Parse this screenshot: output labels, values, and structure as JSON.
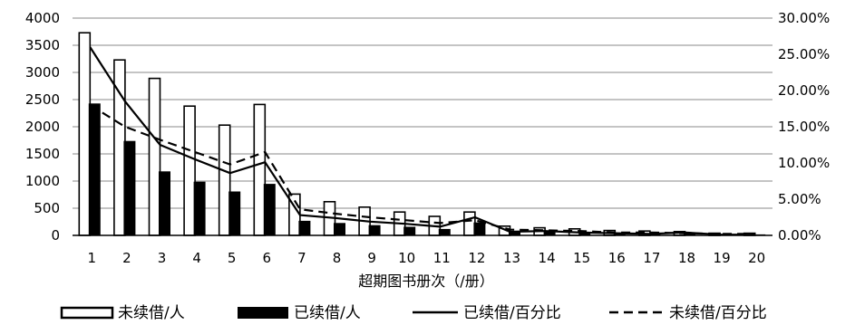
{
  "chart_data": {
    "type": "bar",
    "title": "",
    "xlabel": "超期图书册次（/册）",
    "ylabel": "",
    "categories": [
      "1",
      "2",
      "3",
      "4",
      "5",
      "6",
      "7",
      "8",
      "9",
      "10",
      "11",
      "12",
      "13",
      "14",
      "15",
      "16",
      "17",
      "18",
      "19",
      "20"
    ],
    "ylim": [
      0,
      4000
    ],
    "y_ticks": [
      "0",
      "500",
      "1000",
      "1500",
      "2000",
      "2500",
      "3000",
      "3500",
      "4000"
    ],
    "y2lim": [
      0,
      30
    ],
    "y2_ticks": [
      "0.00%",
      "5.00%",
      "10.00%",
      "15.00%",
      "20.00%",
      "25.00%",
      "30.00%"
    ],
    "grid": true,
    "legend_position": "bottom",
    "series": [
      {
        "name": "未续借/人",
        "kind": "bar",
        "style": "hollow",
        "values": [
          3730,
          3230,
          2890,
          2380,
          2030,
          2410,
          760,
          620,
          520,
          430,
          350,
          430,
          170,
          140,
          120,
          90,
          80,
          70,
          40,
          40
        ]
      },
      {
        "name": "已续借/人",
        "kind": "bar",
        "style": "solid",
        "values": [
          2420,
          1730,
          1170,
          980,
          800,
          940,
          260,
          220,
          180,
          150,
          110,
          230,
          50,
          60,
          40,
          30,
          20,
          40,
          10,
          10
        ]
      },
      {
        "name": "已续借/百分比",
        "kind": "line",
        "style": "solid",
        "axis": "right",
        "values": [
          26.0,
          18.5,
          12.5,
          10.5,
          8.6,
          10.1,
          2.8,
          2.4,
          1.9,
          1.6,
          1.2,
          2.5,
          0.5,
          0.6,
          0.4,
          0.3,
          0.2,
          0.4,
          0.1,
          0.1
        ]
      },
      {
        "name": "未续借/百分比",
        "kind": "line",
        "style": "dashed",
        "axis": "right",
        "values": [
          18.0,
          15.0,
          13.2,
          11.5,
          9.8,
          11.5,
          3.6,
          3.0,
          2.5,
          2.1,
          1.7,
          2.1,
          0.8,
          0.7,
          0.6,
          0.4,
          0.4,
          0.3,
          0.2,
          0.2
        ]
      }
    ]
  }
}
